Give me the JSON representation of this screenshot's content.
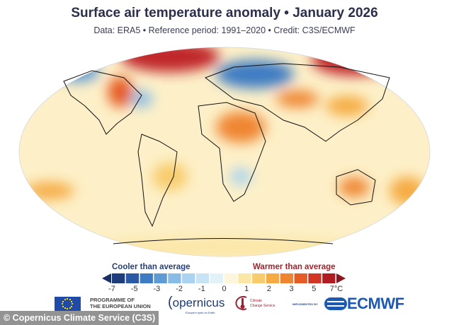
{
  "header": {
    "title": "Surface air temperature anomaly • January 2026",
    "subtitle": "Data: ERA5 • Reference period: 1991–2020 • Credit: C3S/ECMWF"
  },
  "colorbar": {
    "cool_label": "Cooler than average",
    "warm_label": "Warmer than average",
    "ticks": [
      "-7",
      "-5",
      "-3",
      "-2",
      "-1",
      "0",
      "1",
      "2",
      "3",
      "5",
      "7°C"
    ],
    "colors": [
      "#1f3d7a",
      "#2a5aa5",
      "#3d7bc3",
      "#5e9ad4",
      "#86bce6",
      "#a9d3f0",
      "#c8e4f4",
      "#e3f1f8",
      "#fdf6dd",
      "#fbe6a6",
      "#f8cc6d",
      "#f5ab42",
      "#ef8530",
      "#e55c24",
      "#d13524",
      "#b11c22"
    ],
    "low_arrow_color": "#1a2f66",
    "high_arrow_color": "#8e1520"
  },
  "logos": {
    "eu": "PROGRAMME OF\nTHE EUROPEAN UNION",
    "copernicus": "opernicus",
    "copernicus_tagline": "Europe's eyes on Earth",
    "c3s": "Climate\nChange Service",
    "implemented_by": "IMPLEMENTED BY",
    "ecmwf": "ECMWF"
  },
  "credit": "© Copernicus Climate Service (C3S)"
}
